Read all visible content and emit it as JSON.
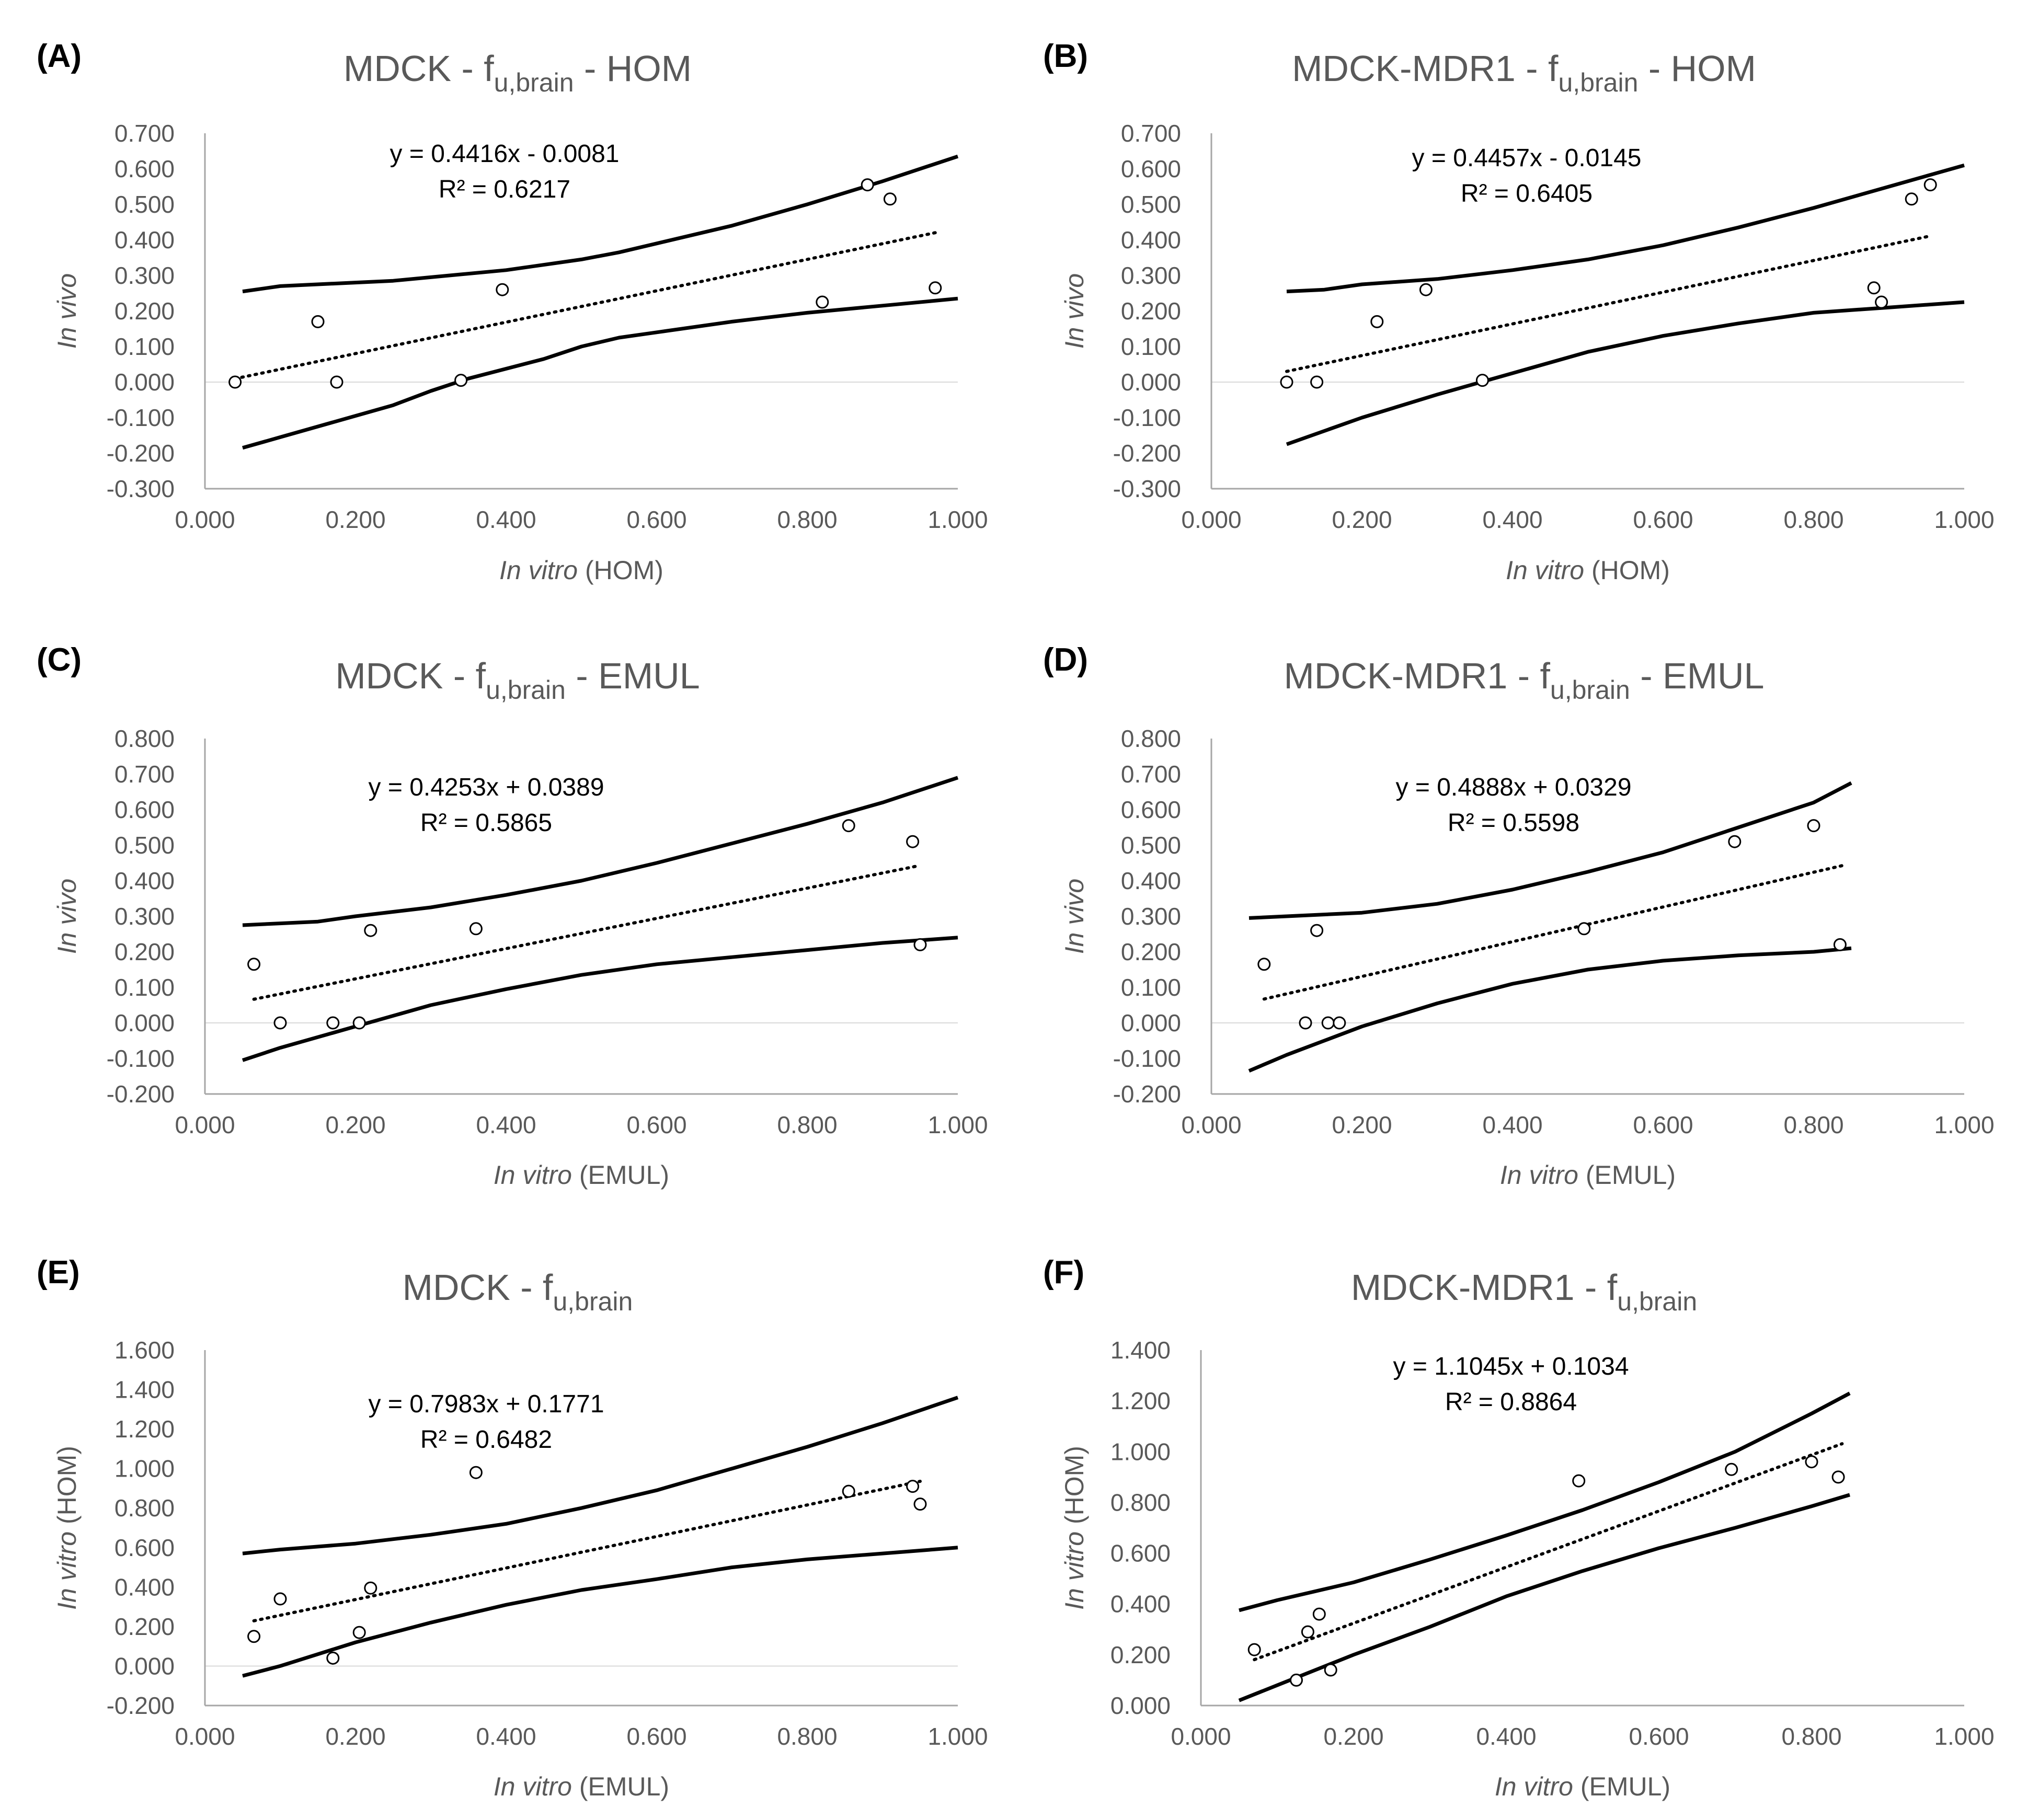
{
  "chart_data": [
    {
      "panel": "(A)",
      "type": "scatter",
      "title": "MDCK - f",
      "title_subscript": "u,brain",
      "title_suffix": " - HOM",
      "xlabel_italic": "In vitro",
      "xlabel_rest": " (HOM)",
      "ylabel_italic": "In vivo",
      "ylabel_rest": "",
      "xlim": [
        0,
        1
      ],
      "ylim": [
        -0.3,
        0.7
      ],
      "x_ticks": [
        "0.000",
        "0.200",
        "0.400",
        "0.600",
        "0.800",
        "1.000"
      ],
      "y_ticks": [
        "0.700",
        "0.600",
        "0.500",
        "0.400",
        "0.300",
        "0.200",
        "0.100",
        "0.000",
        "-0.100",
        "-0.200",
        "-0.300"
      ],
      "equation": "y = 0.4416x - 0.0081",
      "r2": "R² = 0.6217",
      "trend": {
        "slope": 0.4416,
        "intercept": -0.0081,
        "x_range": [
          0.04,
          0.97
        ]
      },
      "points": [
        {
          "x": 0.04,
          "y": 0.0
        },
        {
          "x": 0.15,
          "y": 0.17
        },
        {
          "x": 0.175,
          "y": 0.0
        },
        {
          "x": 0.34,
          "y": 0.005
        },
        {
          "x": 0.395,
          "y": 0.26
        },
        {
          "x": 0.82,
          "y": 0.225
        },
        {
          "x": 0.88,
          "y": 0.555
        },
        {
          "x": 0.91,
          "y": 0.515
        },
        {
          "x": 0.97,
          "y": 0.265
        }
      ],
      "upper_band": [
        [
          0.05,
          0.255
        ],
        [
          0.1,
          0.27
        ],
        [
          0.2,
          0.28
        ],
        [
          0.25,
          0.285
        ],
        [
          0.3,
          0.295
        ],
        [
          0.4,
          0.315
        ],
        [
          0.5,
          0.345
        ],
        [
          0.55,
          0.365
        ],
        [
          0.6,
          0.39
        ],
        [
          0.7,
          0.44
        ],
        [
          0.8,
          0.5
        ],
        [
          0.9,
          0.565
        ],
        [
          1.0,
          0.635
        ]
      ],
      "lower_band": [
        [
          0.05,
          -0.185
        ],
        [
          0.1,
          -0.155
        ],
        [
          0.2,
          -0.095
        ],
        [
          0.25,
          -0.065
        ],
        [
          0.3,
          -0.025
        ],
        [
          0.35,
          0.01
        ],
        [
          0.45,
          0.065
        ],
        [
          0.5,
          0.1
        ],
        [
          0.55,
          0.125
        ],
        [
          0.6,
          0.14
        ],
        [
          0.7,
          0.17
        ],
        [
          0.8,
          0.195
        ],
        [
          0.9,
          0.215
        ],
        [
          1.0,
          0.235
        ]
      ]
    },
    {
      "panel": "(B)",
      "type": "scatter",
      "title": "MDCK-MDR1 - f",
      "title_subscript": "u,brain",
      "title_suffix": " - HOM",
      "xlabel_italic": "In vitro",
      "xlabel_rest": " (HOM)",
      "ylabel_italic": "In vivo",
      "ylabel_rest": "",
      "xlim": [
        0,
        1
      ],
      "ylim": [
        -0.3,
        0.7
      ],
      "x_ticks": [
        "0.000",
        "0.200",
        "0.400",
        "0.600",
        "0.800",
        "1.000"
      ],
      "y_ticks": [
        "0.700",
        "0.600",
        "0.500",
        "0.400",
        "0.300",
        "0.200",
        "0.100",
        "0.000",
        "-0.100",
        "-0.200",
        "-0.300"
      ],
      "equation": "y = 0.4457x - 0.0145",
      "r2": "R² = 0.6405",
      "trend": {
        "slope": 0.4457,
        "intercept": -0.0145,
        "x_range": [
          0.1,
          0.955
        ]
      },
      "points": [
        {
          "x": 0.1,
          "y": 0.0
        },
        {
          "x": 0.14,
          "y": 0.0
        },
        {
          "x": 0.22,
          "y": 0.17
        },
        {
          "x": 0.285,
          "y": 0.26
        },
        {
          "x": 0.36,
          "y": 0.005
        },
        {
          "x": 0.88,
          "y": 0.265
        },
        {
          "x": 0.89,
          "y": 0.225
        },
        {
          "x": 0.93,
          "y": 0.515
        },
        {
          "x": 0.955,
          "y": 0.555
        }
      ],
      "upper_band": [
        [
          0.1,
          0.255
        ],
        [
          0.15,
          0.26
        ],
        [
          0.2,
          0.275
        ],
        [
          0.3,
          0.29
        ],
        [
          0.4,
          0.315
        ],
        [
          0.5,
          0.345
        ],
        [
          0.6,
          0.385
        ],
        [
          0.7,
          0.435
        ],
        [
          0.8,
          0.49
        ],
        [
          0.9,
          0.55
        ],
        [
          1.0,
          0.61
        ]
      ],
      "lower_band": [
        [
          0.1,
          -0.175
        ],
        [
          0.2,
          -0.1
        ],
        [
          0.3,
          -0.035
        ],
        [
          0.4,
          0.025
        ],
        [
          0.5,
          0.085
        ],
        [
          0.6,
          0.13
        ],
        [
          0.7,
          0.165
        ],
        [
          0.8,
          0.195
        ],
        [
          0.9,
          0.21
        ],
        [
          1.0,
          0.225
        ]
      ]
    },
    {
      "panel": "(C)",
      "type": "scatter",
      "title": "MDCK - f",
      "title_subscript": "u,brain",
      "title_suffix": " - EMUL",
      "xlabel_italic": "In vitro",
      "xlabel_rest": " (EMUL)",
      "ylabel_italic": "In vivo",
      "ylabel_rest": "",
      "xlim": [
        0,
        1
      ],
      "ylim": [
        -0.2,
        0.8
      ],
      "x_ticks": [
        "0.000",
        "0.200",
        "0.400",
        "0.600",
        "0.800",
        "1.000"
      ],
      "y_ticks": [
        "0.800",
        "0.700",
        "0.600",
        "0.500",
        "0.400",
        "0.300",
        "0.200",
        "0.100",
        "0.000",
        "-0.100",
        "-0.200"
      ],
      "equation": "y = 0.4253x + 0.0389",
      "r2": "R² = 0.5865",
      "trend": {
        "slope": 0.4253,
        "intercept": 0.0389,
        "x_range": [
          0.065,
          0.95
        ]
      },
      "points": [
        {
          "x": 0.065,
          "y": 0.165
        },
        {
          "x": 0.1,
          "y": 0.0
        },
        {
          "x": 0.17,
          "y": 0.0
        },
        {
          "x": 0.205,
          "y": 0.0
        },
        {
          "x": 0.22,
          "y": 0.26
        },
        {
          "x": 0.36,
          "y": 0.265
        },
        {
          "x": 0.855,
          "y": 0.555
        },
        {
          "x": 0.94,
          "y": 0.51
        },
        {
          "x": 0.95,
          "y": 0.22
        }
      ],
      "upper_band": [
        [
          0.05,
          0.275
        ],
        [
          0.1,
          0.28
        ],
        [
          0.15,
          0.285
        ],
        [
          0.2,
          0.3
        ],
        [
          0.3,
          0.325
        ],
        [
          0.4,
          0.36
        ],
        [
          0.5,
          0.4
        ],
        [
          0.6,
          0.45
        ],
        [
          0.7,
          0.505
        ],
        [
          0.8,
          0.56
        ],
        [
          0.9,
          0.62
        ],
        [
          1.0,
          0.69
        ]
      ],
      "lower_band": [
        [
          0.05,
          -0.105
        ],
        [
          0.1,
          -0.07
        ],
        [
          0.2,
          -0.01
        ],
        [
          0.3,
          0.05
        ],
        [
          0.4,
          0.095
        ],
        [
          0.5,
          0.135
        ],
        [
          0.6,
          0.165
        ],
        [
          0.7,
          0.185
        ],
        [
          0.8,
          0.205
        ],
        [
          0.9,
          0.225
        ],
        [
          1.0,
          0.24
        ]
      ]
    },
    {
      "panel": "(D)",
      "type": "scatter",
      "title": "MDCK-MDR1 - f",
      "title_subscript": "u,brain",
      "title_suffix": " - EMUL",
      "xlabel_italic": "In vitro",
      "xlabel_rest": " (EMUL)",
      "ylabel_italic": "In vivo",
      "ylabel_rest": "",
      "xlim": [
        0,
        1
      ],
      "ylim": [
        -0.2,
        0.8
      ],
      "x_ticks": [
        "0.000",
        "0.200",
        "0.400",
        "0.600",
        "0.800",
        "1.000"
      ],
      "y_ticks": [
        "0.800",
        "0.700",
        "0.600",
        "0.500",
        "0.400",
        "0.300",
        "0.200",
        "0.100",
        "0.000",
        "-0.100",
        "-0.200"
      ],
      "equation": "y = 0.4888x + 0.0329",
      "r2": "R² = 0.5598",
      "trend": {
        "slope": 0.4888,
        "intercept": 0.0329,
        "x_range": [
          0.07,
          0.84
        ]
      },
      "points": [
        {
          "x": 0.07,
          "y": 0.165
        },
        {
          "x": 0.125,
          "y": 0.0
        },
        {
          "x": 0.14,
          "y": 0.26
        },
        {
          "x": 0.155,
          "y": 0.0
        },
        {
          "x": 0.17,
          "y": 0.0
        },
        {
          "x": 0.495,
          "y": 0.265
        },
        {
          "x": 0.695,
          "y": 0.51
        },
        {
          "x": 0.8,
          "y": 0.555
        },
        {
          "x": 0.835,
          "y": 0.22
        }
      ],
      "upper_band": [
        [
          0.05,
          0.295
        ],
        [
          0.1,
          0.3
        ],
        [
          0.2,
          0.31
        ],
        [
          0.3,
          0.335
        ],
        [
          0.4,
          0.375
        ],
        [
          0.5,
          0.425
        ],
        [
          0.6,
          0.48
        ],
        [
          0.7,
          0.55
        ],
        [
          0.8,
          0.62
        ],
        [
          0.85,
          0.675
        ]
      ],
      "lower_band": [
        [
          0.05,
          -0.135
        ],
        [
          0.1,
          -0.09
        ],
        [
          0.15,
          -0.05
        ],
        [
          0.2,
          -0.01
        ],
        [
          0.3,
          0.055
        ],
        [
          0.4,
          0.11
        ],
        [
          0.5,
          0.15
        ],
        [
          0.6,
          0.175
        ],
        [
          0.7,
          0.19
        ],
        [
          0.8,
          0.2
        ],
        [
          0.85,
          0.21
        ]
      ]
    },
    {
      "panel": "(E)",
      "type": "scatter",
      "title": "MDCK - f",
      "title_subscript": "u,brain",
      "title_suffix": "",
      "xlabel_italic": "In vitro",
      "xlabel_rest": " (EMUL)",
      "ylabel_italic": "In vitro",
      "ylabel_rest": " (HOM)",
      "xlim": [
        0,
        1
      ],
      "ylim": [
        -0.2,
        1.6
      ],
      "x_ticks": [
        "0.000",
        "0.200",
        "0.400",
        "0.600",
        "0.800",
        "1.000"
      ],
      "y_ticks": [
        "1.600",
        "1.400",
        "1.200",
        "1.000",
        "0.800",
        "0.600",
        "0.400",
        "0.200",
        "0.000",
        "-0.200"
      ],
      "equation": "y = 0.7983x + 0.1771",
      "r2": "R² = 0.6482",
      "trend": {
        "slope": 0.7983,
        "intercept": 0.1771,
        "x_range": [
          0.065,
          0.95
        ]
      },
      "points": [
        {
          "x": 0.065,
          "y": 0.15
        },
        {
          "x": 0.1,
          "y": 0.34
        },
        {
          "x": 0.17,
          "y": 0.04
        },
        {
          "x": 0.205,
          "y": 0.17
        },
        {
          "x": 0.22,
          "y": 0.395
        },
        {
          "x": 0.36,
          "y": 0.98
        },
        {
          "x": 0.855,
          "y": 0.885
        },
        {
          "x": 0.94,
          "y": 0.91
        },
        {
          "x": 0.95,
          "y": 0.82
        }
      ],
      "upper_band": [
        [
          0.05,
          0.57
        ],
        [
          0.1,
          0.59
        ],
        [
          0.2,
          0.62
        ],
        [
          0.3,
          0.665
        ],
        [
          0.4,
          0.72
        ],
        [
          0.5,
          0.8
        ],
        [
          0.6,
          0.89
        ],
        [
          0.7,
          1.0
        ],
        [
          0.8,
          1.11
        ],
        [
          0.9,
          1.23
        ],
        [
          1.0,
          1.36
        ]
      ],
      "lower_band": [
        [
          0.05,
          -0.05
        ],
        [
          0.1,
          0.0
        ],
        [
          0.2,
          0.12
        ],
        [
          0.3,
          0.22
        ],
        [
          0.4,
          0.31
        ],
        [
          0.5,
          0.385
        ],
        [
          0.6,
          0.44
        ],
        [
          0.7,
          0.5
        ],
        [
          0.8,
          0.54
        ],
        [
          0.9,
          0.57
        ],
        [
          1.0,
          0.6
        ]
      ]
    },
    {
      "panel": "(F)",
      "type": "scatter",
      "title": "MDCK-MDR1 - f",
      "title_subscript": "u,brain",
      "title_suffix": "",
      "xlabel_italic": "In vitro",
      "xlabel_rest": " (EMUL)",
      "ylabel_italic": "In vitro",
      "ylabel_rest": " (HOM)",
      "xlim": [
        0,
        1
      ],
      "ylim": [
        0,
        1.4
      ],
      "x_ticks": [
        "0.000",
        "0.200",
        "0.400",
        "0.600",
        "0.800",
        "1.000"
      ],
      "y_ticks": [
        "1.400",
        "1.200",
        "1.000",
        "0.800",
        "0.600",
        "0.400",
        "0.200",
        "0.000"
      ],
      "equation": "y = 1.1045x + 0.1034",
      "r2": "R² = 0.8864",
      "trend": {
        "slope": 1.1045,
        "intercept": 0.1034,
        "x_range": [
          0.07,
          0.84
        ]
      },
      "points": [
        {
          "x": 0.07,
          "y": 0.22
        },
        {
          "x": 0.125,
          "y": 0.1
        },
        {
          "x": 0.14,
          "y": 0.29
        },
        {
          "x": 0.155,
          "y": 0.36
        },
        {
          "x": 0.17,
          "y": 0.14
        },
        {
          "x": 0.495,
          "y": 0.885
        },
        {
          "x": 0.695,
          "y": 0.93
        },
        {
          "x": 0.8,
          "y": 0.96
        },
        {
          "x": 0.835,
          "y": 0.9
        }
      ],
      "upper_band": [
        [
          0.05,
          0.375
        ],
        [
          0.1,
          0.415
        ],
        [
          0.2,
          0.485
        ],
        [
          0.3,
          0.575
        ],
        [
          0.4,
          0.67
        ],
        [
          0.5,
          0.77
        ],
        [
          0.6,
          0.88
        ],
        [
          0.7,
          1.0
        ],
        [
          0.8,
          1.15
        ],
        [
          0.85,
          1.23
        ]
      ],
      "lower_band": [
        [
          0.05,
          0.02
        ],
        [
          0.1,
          0.08
        ],
        [
          0.2,
          0.2
        ],
        [
          0.3,
          0.31
        ],
        [
          0.4,
          0.43
        ],
        [
          0.5,
          0.53
        ],
        [
          0.6,
          0.62
        ],
        [
          0.7,
          0.7
        ],
        [
          0.8,
          0.785
        ],
        [
          0.85,
          0.83
        ]
      ]
    }
  ]
}
